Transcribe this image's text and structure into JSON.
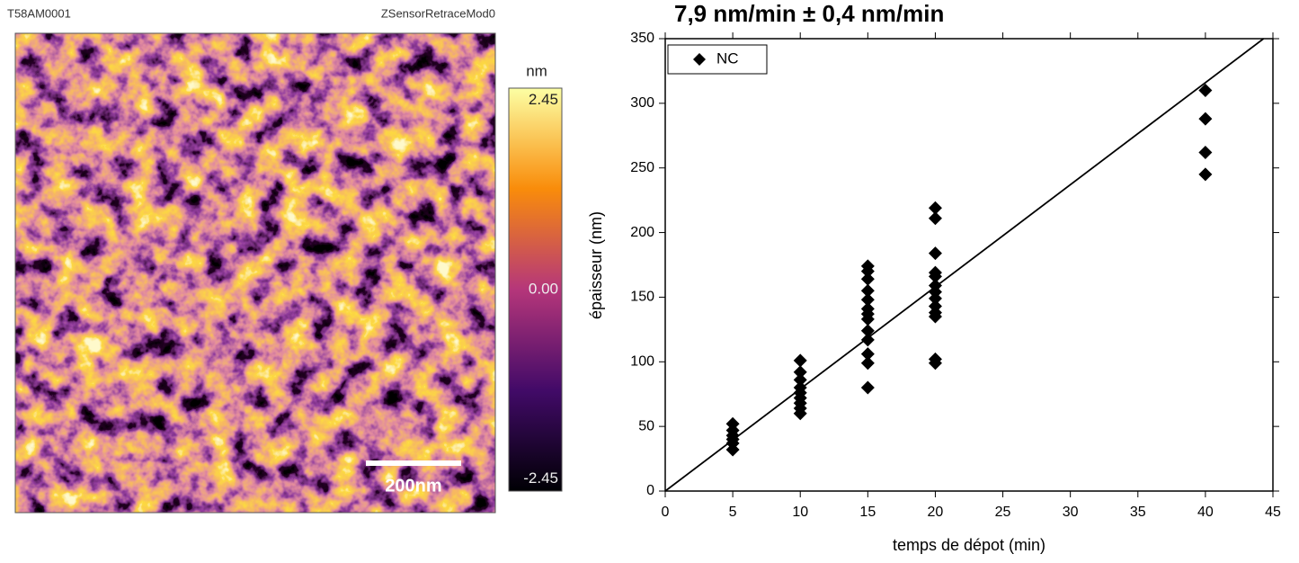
{
  "image_panel": {
    "name": "T58AM0001",
    "channel": "ZSensorRetraceMod0",
    "scale_bar": "200nm",
    "colorbar": {
      "unit": "nm",
      "range": [
        -2.61,
        2.61
      ],
      "ticks": [
        2.45,
        {
          "value": 0,
          "label": "0.00"
        },
        -2.45
      ]
    }
  },
  "chart_data": {
    "type": "scatter",
    "title": "7,9 nm/min ± 0,4 nm/min",
    "x_label": "temps de dépot (min)",
    "y_label": "épaisseur (nm)",
    "xlim": [
      0,
      45
    ],
    "xticks": [
      0,
      5,
      10,
      15,
      20,
      25,
      30,
      35,
      40,
      45
    ],
    "ylim": [
      0,
      350
    ],
    "yticks": [
      0,
      50,
      100,
      150,
      200,
      250,
      300,
      350
    ],
    "legend": "upper left",
    "series": [
      {
        "name": "NC",
        "color": "#000000",
        "x": [
          5,
          5,
          5,
          5,
          5,
          5,
          10,
          10,
          10,
          10,
          10,
          10,
          10,
          10,
          10,
          15,
          15,
          15,
          15,
          15,
          15,
          15,
          15,
          15,
          15,
          15,
          15,
          15,
          20,
          20,
          20,
          20,
          20,
          20,
          20,
          20,
          20,
          20,
          20,
          20,
          20,
          40,
          40,
          40,
          40
        ],
        "values": [
          52,
          47,
          43,
          40,
          37,
          32,
          101,
          92,
          86,
          80,
          76,
          72,
          68,
          64,
          60,
          174,
          170,
          164,
          155,
          148,
          141,
          137,
          133,
          124,
          117,
          106,
          99,
          80,
          219,
          211,
          184,
          169,
          166,
          159,
          154,
          149,
          143,
          138,
          135,
          102,
          99,
          310,
          288,
          262,
          245
        ]
      }
    ],
    "trend_line": {
      "slope": 7.9,
      "intercept": 0,
      "color": "#000000"
    }
  }
}
